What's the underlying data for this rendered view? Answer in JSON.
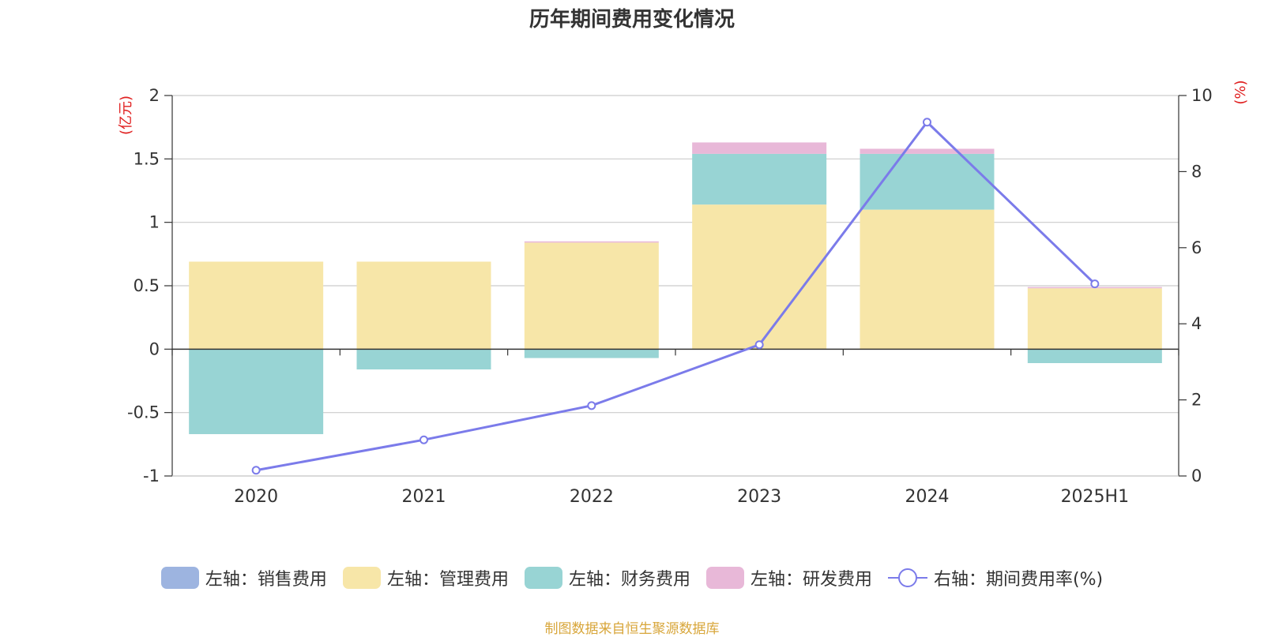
{
  "chart_data": {
    "type": "bar",
    "title": "历年期间费用变化情况",
    "categories": [
      "2020",
      "2021",
      "2022",
      "2023",
      "2024",
      "2025H1"
    ],
    "left_axis": {
      "unit": "(亿元)",
      "ylim": [
        -1,
        2
      ],
      "ticks": [
        "-1",
        "-0.5",
        "0",
        "0.5",
        "1",
        "1.5",
        "2"
      ]
    },
    "right_axis": {
      "unit": "(%)",
      "ylim": [
        0,
        10
      ],
      "ticks": [
        "0",
        "2",
        "4",
        "6",
        "8",
        "10"
      ]
    },
    "series": [
      {
        "name": "左轴：销售费用",
        "axis": "left",
        "kind": "bar",
        "color": "#9db4e0",
        "values": [
          0,
          0,
          0,
          0,
          0,
          0
        ]
      },
      {
        "name": "左轴：管理费用",
        "axis": "left",
        "kind": "bar",
        "color": "#f7e6a8",
        "values": [
          0.69,
          0.69,
          0.84,
          1.14,
          1.1,
          0.48
        ]
      },
      {
        "name": "左轴：财务费用",
        "axis": "left",
        "kind": "bar",
        "color": "#98d4d4",
        "values": [
          -0.67,
          -0.16,
          -0.07,
          0.4,
          0.44,
          -0.11
        ]
      },
      {
        "name": "左轴：研发费用",
        "axis": "left",
        "kind": "bar",
        "color": "#e8b8d8",
        "values": [
          0,
          0,
          0.01,
          0.09,
          0.04,
          0.01
        ]
      },
      {
        "name": "右轴：期间费用率(%)",
        "axis": "right",
        "kind": "line",
        "color": "#7b7bea",
        "values": [
          0.15,
          0.95,
          1.85,
          3.45,
          9.3,
          5.05
        ]
      }
    ],
    "grid": true,
    "legend_position": "bottom"
  },
  "source_note": "制图数据来自恒生聚源数据库"
}
